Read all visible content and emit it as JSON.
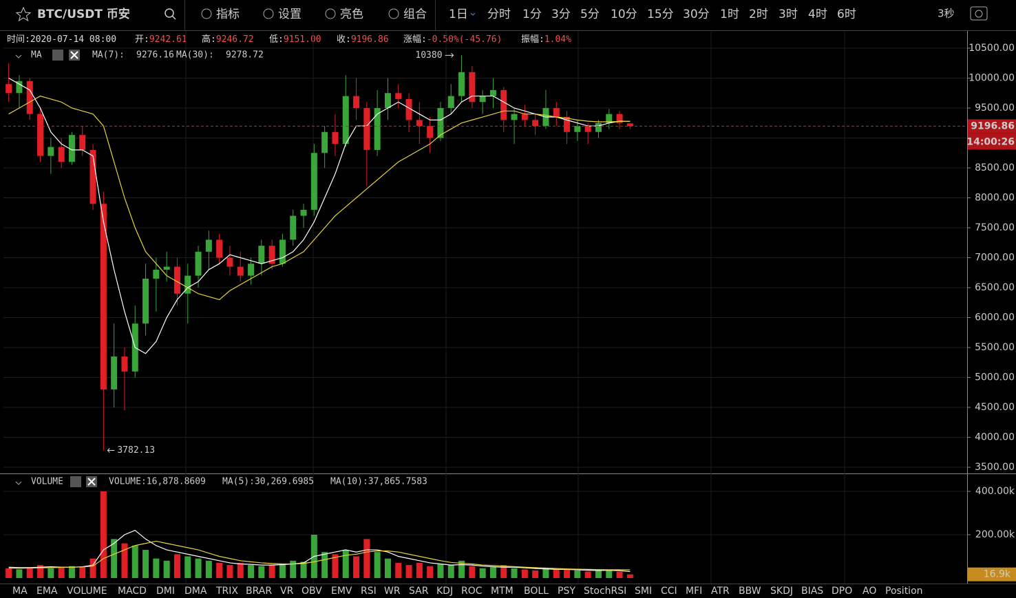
{
  "toolbar": {
    "symbol": "BTC/USDT 币安",
    "tools": [
      "指标",
      "设置",
      "亮色",
      "组合"
    ],
    "periods": [
      "1日",
      "分时",
      "1分",
      "3分",
      "5分",
      "10分",
      "15分",
      "30分",
      "1时",
      "2时",
      "3时",
      "4时",
      "6时"
    ],
    "active_period_index": 0,
    "refresh": "3秒"
  },
  "info": [
    {
      "label": "时间:",
      "value": "2020-07-14 08:00"
    },
    {
      "label": "开:",
      "value": "9242.61"
    },
    {
      "label": "高:",
      "value": "9246.72"
    },
    {
      "label": "低:",
      "value": "9151.00"
    },
    {
      "label": "收:",
      "value": "9196.86"
    },
    {
      "label": "涨幅:",
      "value": "-0.50%(-45.76)"
    },
    {
      "label": "振幅:",
      "value": "1.04%"
    }
  ],
  "chart_data": {
    "type": "candlestick",
    "indicator": "MA",
    "up_color": "#3aa53a",
    "down_color": "#e01f26",
    "grid": true,
    "ylim": [
      3397,
      10787
    ],
    "yticks": [
      {
        "value": 3500,
        "label": "3500.00"
      },
      {
        "value": 4000,
        "label": "4000.00"
      },
      {
        "value": 4500,
        "label": "4500.00"
      },
      {
        "value": 5000,
        "label": "5000.00"
      },
      {
        "value": 5500,
        "label": "5500.00"
      },
      {
        "value": 6000,
        "label": "6000.00"
      },
      {
        "value": 6500,
        "label": "6500.00"
      },
      {
        "value": 7000,
        "label": "7000.00"
      },
      {
        "value": 7500,
        "label": "7500.00"
      },
      {
        "value": 8000,
        "label": "8000.00"
      },
      {
        "value": 8500,
        "label": "8500.00"
      },
      {
        "value": 9000,
        "label": "9000.00"
      },
      {
        "value": 9500,
        "label": "9500.00"
      },
      {
        "value": 10000,
        "label": "10000.00"
      },
      {
        "value": 10500,
        "label": "10500.00"
      }
    ],
    "ohlc": [
      [
        9900,
        10250,
        9600,
        9750
      ],
      [
        9750,
        10050,
        9500,
        9950
      ],
      [
        9950,
        10000,
        9300,
        9400
      ],
      [
        9400,
        9500,
        8600,
        8700
      ],
      [
        8700,
        9000,
        8400,
        8850
      ],
      [
        8850,
        9000,
        8500,
        8600
      ],
      [
        8600,
        9100,
        8550,
        9050
      ],
      [
        9050,
        9200,
        8700,
        8800
      ],
      [
        8800,
        8900,
        7800,
        7900
      ],
      [
        7900,
        8100,
        3782.13,
        4800
      ],
      [
        4800,
        5900,
        4500,
        5350
      ],
      [
        5350,
        5500,
        4450,
        5100
      ],
      [
        5100,
        6200,
        5000,
        5900
      ],
      [
        5900,
        6900,
        5700,
        6650
      ],
      [
        6650,
        7000,
        6100,
        6800
      ],
      [
        6800,
        7100,
        6600,
        6850
      ],
      [
        6850,
        7000,
        6200,
        6400
      ],
      [
        6400,
        6900,
        5900,
        6700
      ],
      [
        6700,
        7200,
        6500,
        7100
      ],
      [
        7100,
        7450,
        6800,
        7300
      ],
      [
        7300,
        7400,
        6900,
        7000
      ],
      [
        7000,
        7200,
        6700,
        6850
      ],
      [
        6850,
        7100,
        6600,
        6700
      ],
      [
        6700,
        7000,
        6550,
        6900
      ],
      [
        6900,
        7300,
        6700,
        7200
      ],
      [
        7200,
        7300,
        6800,
        6900
      ],
      [
        6900,
        7400,
        6850,
        7300
      ],
      [
        7300,
        7800,
        7200,
        7700
      ],
      [
        7700,
        7900,
        7500,
        7800
      ],
      [
        7800,
        8900,
        7700,
        8750
      ],
      [
        8750,
        9200,
        8500,
        9100
      ],
      [
        9100,
        9400,
        8700,
        8900
      ],
      [
        8900,
        10050,
        8850,
        9700
      ],
      [
        9700,
        10000,
        9300,
        9500
      ],
      [
        9500,
        9600,
        8200,
        8800
      ],
      [
        8800,
        9800,
        8700,
        9500
      ],
      [
        9500,
        10000,
        9300,
        9750
      ],
      [
        9750,
        9900,
        9500,
        9650
      ],
      [
        9650,
        9750,
        9100,
        9300
      ],
      [
        9300,
        9600,
        8900,
        9200
      ],
      [
        9200,
        9350,
        8750,
        9000
      ],
      [
        9000,
        9600,
        8950,
        9500
      ],
      [
        9500,
        9900,
        9400,
        9700
      ],
      [
        9700,
        10380,
        9600,
        10100
      ],
      [
        10100,
        10200,
        9500,
        9600
      ],
      [
        9600,
        9800,
        9400,
        9700
      ],
      [
        9700,
        10000,
        9500,
        9800
      ],
      [
        9800,
        9850,
        9100,
        9300
      ],
      [
        9300,
        9500,
        8900,
        9400
      ],
      [
        9400,
        9550,
        9200,
        9300
      ],
      [
        9300,
        9400,
        9050,
        9200
      ],
      [
        9200,
        9800,
        9150,
        9500
      ],
      [
        9500,
        9600,
        9200,
        9350
      ],
      [
        9350,
        9450,
        8900,
        9100
      ],
      [
        9100,
        9300,
        8950,
        9200
      ],
      [
        9200,
        9250,
        8900,
        9100
      ],
      [
        9100,
        9300,
        9000,
        9250
      ],
      [
        9250,
        9480,
        9150,
        9400
      ],
      [
        9400,
        9450,
        9150,
        9250
      ],
      [
        9242.61,
        9246.72,
        9151,
        9196.86
      ]
    ],
    "series": [
      {
        "name": "MA(7):",
        "color": "#ffffff",
        "values": [
          10000,
          9900,
          9800,
          9500,
          9100,
          8900,
          8800,
          8800,
          8700,
          7600,
          6800,
          6100,
          5500,
          5400,
          5600,
          6000,
          6300,
          6500,
          6600,
          6800,
          6900,
          7050,
          7000,
          6950,
          6900,
          6950,
          7000,
          7100,
          7300,
          7600,
          8000,
          8400,
          8900,
          9200,
          9200,
          9400,
          9500,
          9600,
          9500,
          9400,
          9300,
          9300,
          9400,
          9600,
          9700,
          9700,
          9700,
          9600,
          9500,
          9450,
          9400,
          9350,
          9350,
          9300,
          9250,
          9200,
          9200,
          9250,
          9280,
          9276.16
        ]
      },
      {
        "name": "MA(30):",
        "color": "#e6d23c",
        "values": [
          9400,
          9500,
          9600,
          9700,
          9650,
          9600,
          9500,
          9450,
          9400,
          9200,
          8600,
          8000,
          7500,
          7100,
          6900,
          6700,
          6600,
          6500,
          6400,
          6350,
          6300,
          6450,
          6550,
          6650,
          6750,
          6850,
          6900,
          7000,
          7100,
          7300,
          7500,
          7700,
          7850,
          8000,
          8150,
          8300,
          8450,
          8600,
          8700,
          8800,
          8900,
          9050,
          9150,
          9250,
          9300,
          9350,
          9400,
          9450,
          9450,
          9400,
          9400,
          9380,
          9350,
          9330,
          9300,
          9280,
          9270,
          9270,
          9275,
          9278.72
        ]
      }
    ],
    "countdown": "14:00:26"
  },
  "volume": {
    "name": "VOLUME",
    "legend": [
      {
        "text": "VOLUME:16,878.8609",
        "color": "#dddddd"
      },
      {
        "text": "MA(5):30,269.6985",
        "color": "#dddddd"
      },
      {
        "text": "MA(10):37,865.7583",
        "color": "#e6d23c"
      }
    ],
    "ylim": [
      -15873,
      476190
    ],
    "yticks": [
      {
        "value": 200000,
        "label": "200.00k"
      },
      {
        "value": 400000,
        "label": "400.00k"
      }
    ],
    "values": [
      45000,
      40000,
      50000,
      60000,
      45000,
      50000,
      55000,
      50000,
      90000,
      400000,
      180000,
      160000,
      150000,
      130000,
      90000,
      80000,
      110000,
      100000,
      90000,
      80000,
      70000,
      60000,
      70000,
      60000,
      55000,
      60000,
      65000,
      80000,
      75000,
      200000,
      120000,
      110000,
      130000,
      100000,
      180000,
      120000,
      90000,
      70000,
      60000,
      70000,
      55000,
      65000,
      60000,
      80000,
      55000,
      45000,
      50000,
      60000,
      45000,
      40000,
      35000,
      45000,
      40000,
      40000,
      35000,
      30000,
      35000,
      40000,
      30000,
      16878.8609
    ],
    "ma_series": [
      {
        "color": "#ffffff",
        "values": [
          50000,
          48000,
          48000,
          50000,
          52000,
          50000,
          50000,
          52000,
          60000,
          130000,
          160000,
          200000,
          220000,
          180000,
          150000,
          130000,
          120000,
          110000,
          100000,
          90000,
          80000,
          70000,
          65000,
          63000,
          60000,
          60000,
          62000,
          65000,
          70000,
          100000,
          110000,
          120000,
          130000,
          120000,
          130000,
          130000,
          120000,
          100000,
          90000,
          80000,
          70000,
          65000,
          60000,
          62000,
          60000,
          55000,
          52000,
          50000,
          50000,
          47000,
          44000,
          42000,
          40000,
          40000,
          38000,
          36000,
          35000,
          36000,
          34000,
          30269.6985
        ]
      },
      {
        "color": "#e6d23c",
        "values": [
          45000,
          45000,
          46000,
          47000,
          48000,
          49000,
          50000,
          51000,
          55000,
          90000,
          110000,
          130000,
          150000,
          160000,
          170000,
          160000,
          150000,
          140000,
          130000,
          115000,
          100000,
          90000,
          80000,
          75000,
          70000,
          67000,
          65000,
          65000,
          67000,
          75000,
          85000,
          95000,
          105000,
          110000,
          120000,
          125000,
          125000,
          120000,
          110000,
          100000,
          90000,
          80000,
          72000,
          68000,
          65000,
          60000,
          58000,
          55000,
          53000,
          50000,
          48000,
          46000,
          44000,
          42000,
          41000,
          40000,
          39000,
          38000,
          38500,
          37865.7583
        ]
      }
    ],
    "tag": "16.9k"
  },
  "tabs": [
    "MA",
    "EMA",
    "VOLUME",
    "MACD",
    "DMI",
    "DMA",
    "TRIX",
    "BRAR",
    "VR",
    "OBV",
    "EMV",
    "RSI",
    "WR",
    "SAR",
    "KDJ",
    "ROC",
    "MTM",
    "BOLL",
    "PSY",
    "StochRSI",
    "SMI",
    "CCI",
    "MFI",
    "ATR",
    "BBW",
    "SKDJ",
    "BIAS",
    "DPO",
    "AO",
    "Position"
  ],
  "active_tab_index": 2
}
